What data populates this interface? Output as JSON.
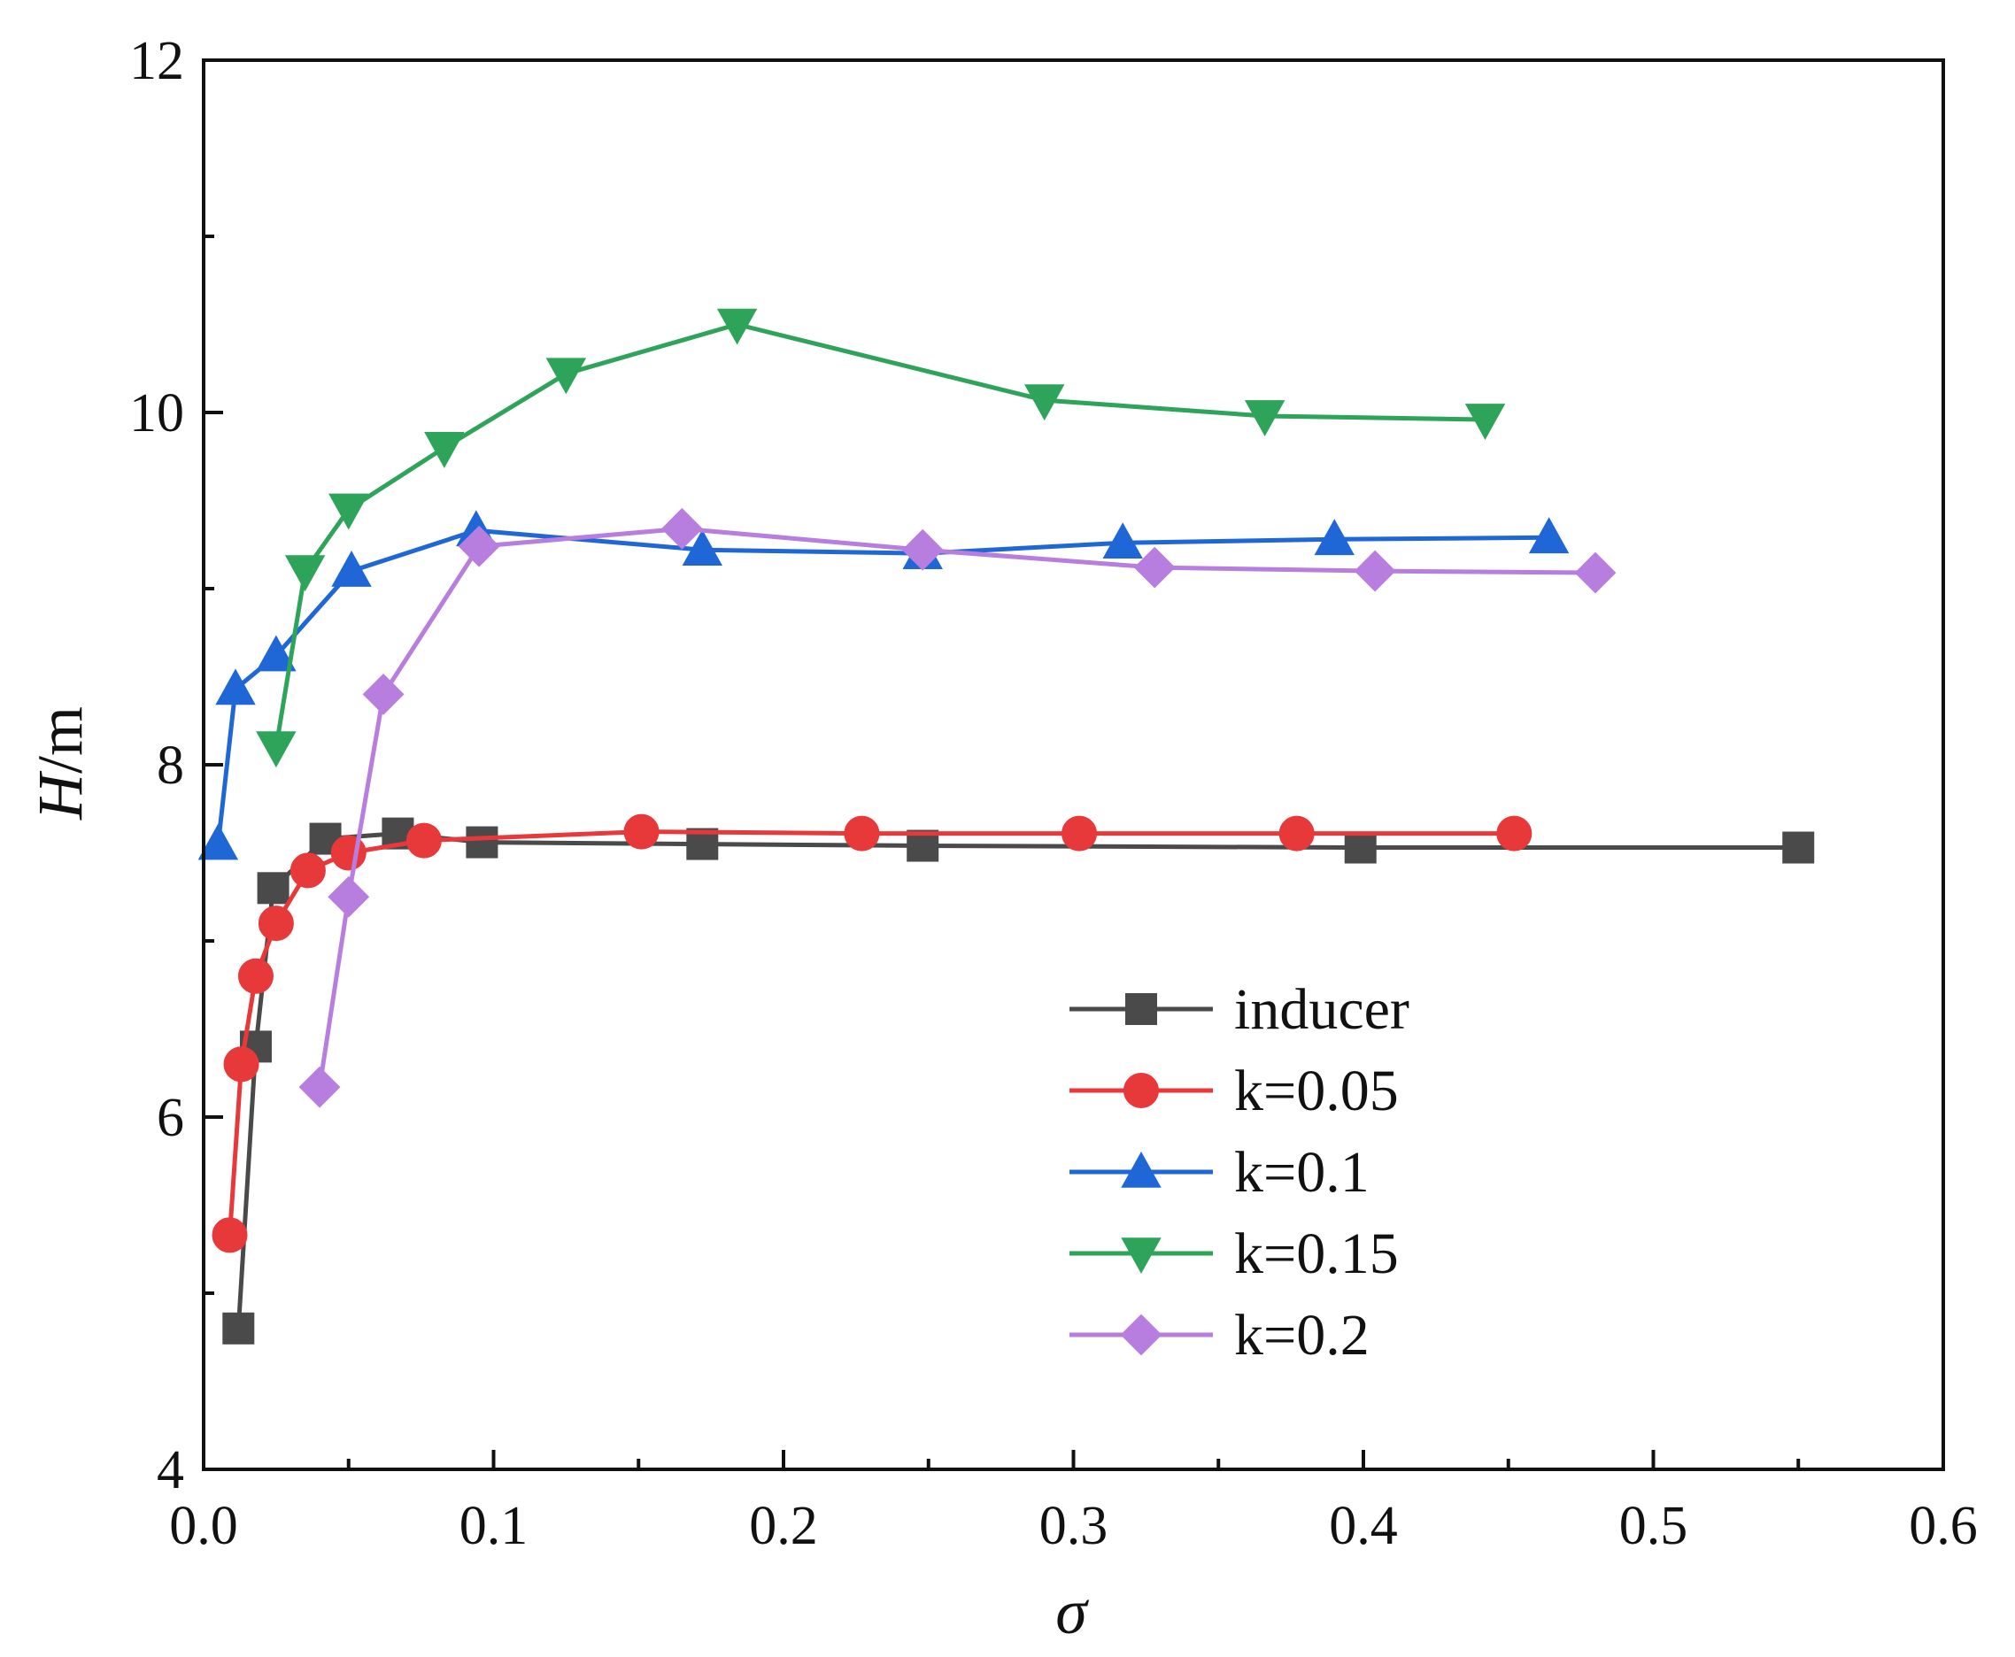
{
  "chart_data": {
    "type": "line",
    "xlabel": "σ",
    "ylabel_italic": "H",
    "ylabel_unit": "/m",
    "xlim": [
      0.0,
      0.6
    ],
    "ylim": [
      4,
      12
    ],
    "x_ticks": [
      {
        "value": 0.0,
        "label": "0.0"
      },
      {
        "value": 0.1,
        "label": "0.1"
      },
      {
        "value": 0.2,
        "label": "0.2"
      },
      {
        "value": 0.3,
        "label": "0.3"
      },
      {
        "value": 0.4,
        "label": "0.4"
      },
      {
        "value": 0.5,
        "label": "0.5"
      },
      {
        "value": 0.6,
        "label": "0.6"
      }
    ],
    "x_minor_ticks": [
      0.05,
      0.15,
      0.25,
      0.35,
      0.45,
      0.55
    ],
    "y_ticks": [
      {
        "value": 4,
        "label": "4"
      },
      {
        "value": 6,
        "label": "6"
      },
      {
        "value": 8,
        "label": "8"
      },
      {
        "value": 10,
        "label": "10"
      },
      {
        "value": 12,
        "label": "12"
      }
    ],
    "y_minor_ticks": [
      5,
      7,
      9,
      11
    ],
    "legend_position": "lower-right",
    "series": [
      {
        "name": "inducer",
        "color": "#4a4a4a",
        "marker": "square",
        "x": [
          0.012,
          0.018,
          0.024,
          0.042,
          0.067,
          0.096,
          0.172,
          0.248,
          0.399,
          0.55
        ],
        "y": [
          4.8,
          6.4,
          7.3,
          7.58,
          7.61,
          7.56,
          7.55,
          7.54,
          7.53,
          7.53
        ]
      },
      {
        "name": "k=0.05",
        "color": "#e8393a",
        "marker": "circle",
        "x": [
          0.009,
          0.013,
          0.018,
          0.025,
          0.036,
          0.05,
          0.076,
          0.151,
          0.227,
          0.302,
          0.377,
          0.452
        ],
        "y": [
          5.33,
          6.3,
          6.8,
          7.1,
          7.4,
          7.5,
          7.57,
          7.62,
          7.61,
          7.61,
          7.61,
          7.61
        ]
      },
      {
        "name": "k=0.1",
        "color": "#1f67d6",
        "marker": "triangle-up",
        "x": [
          0.005,
          0.011,
          0.025,
          0.051,
          0.094,
          0.172,
          0.248,
          0.317,
          0.39,
          0.464
        ],
        "y": [
          7.55,
          8.43,
          8.62,
          9.1,
          9.33,
          9.22,
          9.2,
          9.26,
          9.28,
          9.29
        ]
      },
      {
        "name": "k=0.15",
        "color": "#2ea35a",
        "marker": "triangle-down",
        "x": [
          0.025,
          0.035,
          0.05,
          0.083,
          0.125,
          0.184,
          0.29,
          0.366,
          0.442
        ],
        "y": [
          8.1,
          9.1,
          9.45,
          9.8,
          10.22,
          10.5,
          10.07,
          9.98,
          9.96
        ]
      },
      {
        "name": "k=0.2",
        "color": "#b77ee0",
        "marker": "diamond",
        "x": [
          0.04,
          0.05,
          0.062,
          0.095,
          0.165,
          0.248,
          0.328,
          0.404,
          0.48
        ],
        "y": [
          6.17,
          7.25,
          8.4,
          9.24,
          9.34,
          9.22,
          9.12,
          9.1,
          9.09
        ]
      }
    ]
  }
}
